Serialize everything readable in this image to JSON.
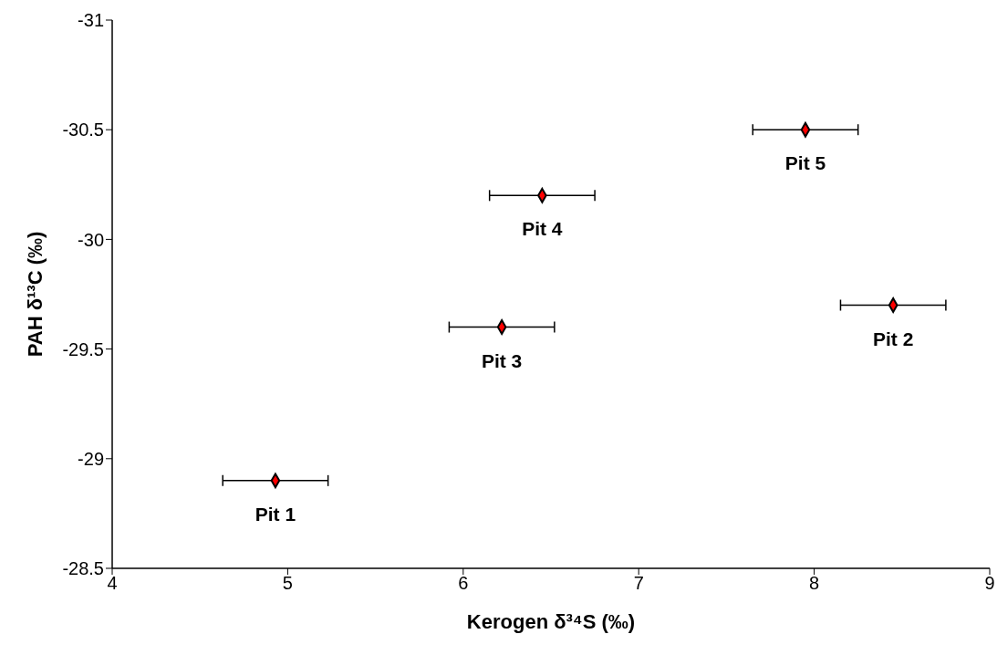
{
  "chart_data": {
    "type": "scatter",
    "xlabel": "Kerogen δ³⁴S (‰)",
    "ylabel": "PAH δ¹³C (‰)",
    "x": [
      4.93,
      8.45,
      6.22,
      6.45,
      7.95
    ],
    "values": [
      -28.9,
      -29.7,
      -29.6,
      -30.2,
      -30.5
    ],
    "xerrors": [
      0.3,
      0.3,
      0.3,
      0.3,
      0.3
    ],
    "color": "#ff0000",
    "marker": "diamond",
    "xlim": [
      4,
      9
    ],
    "xticks": [
      4,
      5,
      6,
      7,
      8,
      9
    ],
    "ylim": [
      -28.5,
      -31
    ],
    "yticks": [
      -28.5,
      -29,
      -29.5,
      -30,
      -30.5,
      -31
    ],
    "grid": false,
    "legend": false,
    "annotations": [
      {
        "text": "Pit 1",
        "x": 4.93,
        "y": -28.9
      },
      {
        "text": "Pit 2",
        "x": 8.45,
        "y": -29.7
      },
      {
        "text": "Pit 3",
        "x": 6.22,
        "y": -29.6
      },
      {
        "text": "Pit 4",
        "x": 6.45,
        "y": -30.2
      },
      {
        "text": "Pit 5",
        "x": 7.95,
        "y": -30.5
      }
    ]
  }
}
